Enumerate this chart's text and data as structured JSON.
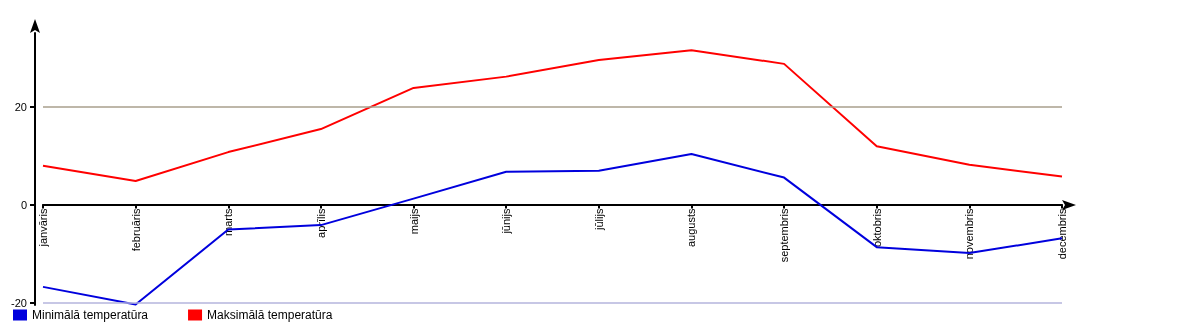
{
  "chart_data": {
    "type": "line",
    "categories": [
      "janvāris",
      "februāris",
      "marts",
      "aprīlis",
      "maijs",
      "jūnijs",
      "jūlijs",
      "augusts",
      "septembris",
      "oktobris",
      "novembris",
      "decembris"
    ],
    "series": [
      {
        "name": "Minimālā temperatūra",
        "color": "#0000dd",
        "values": [
          -16.8,
          -20.4,
          -5.1,
          -4.2,
          1.2,
          6.7,
          6.9,
          10.3,
          5.5,
          -8.7,
          -9.9,
          -6.9
        ]
      },
      {
        "name": "Maksimālā temperatūra",
        "color": "#ff0000",
        "values": [
          7.9,
          4.8,
          10.7,
          15.4,
          23.8,
          26.1,
          29.5,
          31.5,
          28.7,
          11.9,
          8.1,
          5.7
        ]
      }
    ],
    "ylim": [
      -20.5,
      35
    ],
    "yticks": [
      -20,
      0,
      20
    ],
    "grid": false,
    "legend": "bottom left",
    "marker": "none",
    "line_style": "solid",
    "ref_lines": [
      {
        "axis": "y",
        "value": 20,
        "color": "#a89f8c"
      },
      {
        "axis": "y",
        "value": -20,
        "color": "#b4b4dc"
      }
    ]
  }
}
